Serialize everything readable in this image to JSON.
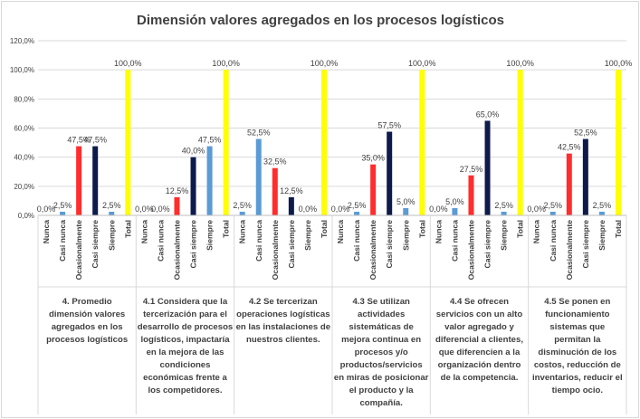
{
  "chart_data": {
    "type": "bar",
    "title": "Dimensión valores agregados en los procesos logísticos",
    "categories": [
      "Nunca",
      "Casi nunca",
      "Ocasionalmente",
      "Casi siempre",
      "Siempre",
      "Total"
    ],
    "category_colors": [
      "#5b9bd5",
      "#5b9bd5",
      "#ff2d2d",
      "#0d1b4c",
      "#5b9bd5",
      "#ffff00"
    ],
    "yticks": [
      "0,0%",
      "20,0%",
      "40,0%",
      "60,0%",
      "80,0%",
      "100,0%",
      "120,0%"
    ],
    "ylim": [
      0,
      120
    ],
    "grid": true,
    "groups": [
      {
        "label": [
          "4. Promedio",
          "dimensión valores",
          "agregados en los",
          "procesos logísticos"
        ],
        "values": [
          0,
          2.5,
          47.5,
          47.5,
          2.5,
          100
        ],
        "value_labels": [
          "0,0%",
          "2,5%",
          "47,5%",
          "47,5%",
          "2,5%",
          "100,0%"
        ]
      },
      {
        "label": [
          "4.1 Considera que la",
          "tercerización para el",
          "desarrollo de procesos",
          "logísticos, impactaría",
          "en la mejora de las",
          "condiciones",
          "económicas frente a",
          "los competidores."
        ],
        "values": [
          0,
          0,
          12.5,
          40,
          47.5,
          100
        ],
        "value_labels": [
          "0,0%",
          "0,0%",
          "12,5%",
          "40,0%",
          "47,5%",
          "100,0%"
        ]
      },
      {
        "label": [
          "4.2 Se tercerizan",
          "operaciones logísticas",
          "en las instalaciones de",
          "nuestros clientes."
        ],
        "values": [
          2.5,
          52.5,
          32.5,
          12.5,
          0,
          100
        ],
        "value_labels": [
          "2,5%",
          "52,5%",
          "32,5%",
          "12,5%",
          "0,0%",
          "100,0%"
        ]
      },
      {
        "label": [
          "4.3 Se utilizan",
          "actividades",
          "sistemáticas de",
          "mejora continua en",
          "procesos y/o",
          "productos/servicios",
          "en miras de posicionar",
          "el producto y la",
          "compañía."
        ],
        "values": [
          0,
          2.5,
          35,
          57.5,
          5,
          100
        ],
        "value_labels": [
          "0,0%",
          "2,5%",
          "35,0%",
          "57,5%",
          "5,0%",
          "100,0%"
        ]
      },
      {
        "label": [
          "4.4 Se ofrecen",
          "servicios con un alto",
          "valor agregado y",
          "diferencial a clientes,",
          "que diferencien a la",
          "organización dentro",
          "de la competencia."
        ],
        "values": [
          0,
          5,
          27.5,
          65,
          2.5,
          100
        ],
        "value_labels": [
          "0,0%",
          "5,0%",
          "27,5%",
          "65,0%",
          "2,5%",
          "100,0%"
        ]
      },
      {
        "label": [
          "4.5 Se ponen en",
          "funcionamiento",
          "sistemas que",
          "permitan la",
          "disminución de los",
          "costos, reducción de",
          "inventarios, reducir el",
          "tiempo ocio."
        ],
        "values": [
          0,
          2.5,
          42.5,
          52.5,
          2.5,
          100
        ],
        "value_labels": [
          "0,0%",
          "2,5%",
          "42,5%",
          "52,5%",
          "2,5%",
          "100,0%"
        ]
      }
    ]
  }
}
